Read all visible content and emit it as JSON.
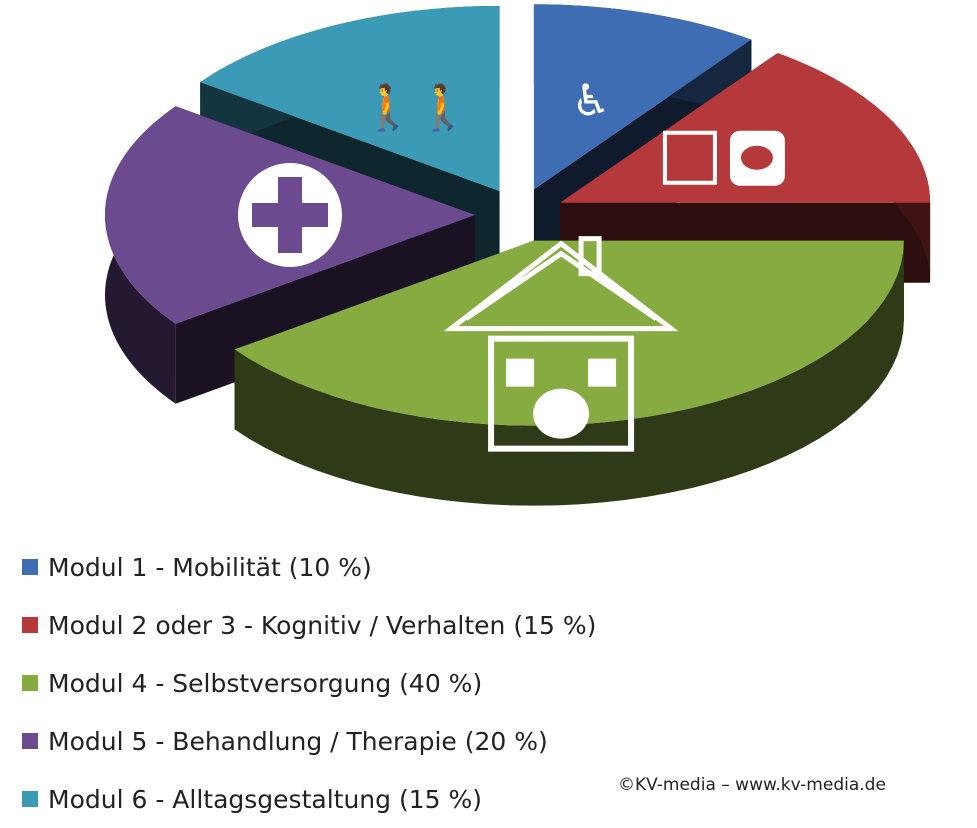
{
  "chart_data": {
    "type": "pie",
    "style": "3d-exploded",
    "categories": [
      "Modul 1 - Mobilität",
      "Modul 2 oder 3 - Kognitiv / Verhalten",
      "Modul 4 - Selbstversorgung",
      "Modul 5 - Behandlung / Therapie",
      "Modul 6 - Alltagsgestaltung"
    ],
    "values": [
      10,
      15,
      40,
      20,
      15
    ],
    "colors": [
      "#3f6db3",
      "#b5393b",
      "#86ab41",
      "#6b4a8f",
      "#3b9ab5"
    ],
    "icons": [
      "wheelchair-icon",
      "conflict-and-speech-bubble-icon",
      "house-icon",
      "medical-cross-icon",
      "people-walking-icon"
    ],
    "legend_labels": [
      "Modul 1 - Mobilität (10 %)",
      "Modul 2 oder 3 - Kognitiv / Verhalten (15 %)",
      "Modul 4 - Selbstversorgung (40 %)",
      "Modul 5 - Behandlung / Therapie (20 %)",
      "Modul 6 - Alltagsgestaltung (15 %)"
    ],
    "legend_position": "bottom-left"
  },
  "copyright": "©KV-media – www.kv-media.de"
}
